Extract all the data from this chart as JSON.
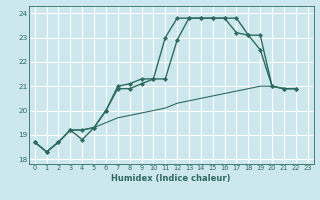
{
  "xlabel": "Humidex (Indice chaleur)",
  "background_color": "#cce8ee",
  "grid_color": "#ffffff",
  "line_color": "#2e6b5e",
  "xlim": [
    -0.5,
    23.5
  ],
  "ylim": [
    17.8,
    24.3
  ],
  "xticks": [
    0,
    1,
    2,
    3,
    4,
    5,
    6,
    7,
    8,
    9,
    10,
    11,
    12,
    13,
    14,
    15,
    16,
    17,
    18,
    19,
    20,
    21,
    22,
    23
  ],
  "yticks": [
    18,
    19,
    20,
    21,
    22,
    23,
    24
  ],
  "series": [
    {
      "x": [
        0,
        1,
        2,
        3,
        4,
        5,
        6,
        7,
        8,
        9,
        10,
        11,
        12,
        13,
        14,
        15,
        16,
        17,
        18,
        19,
        20,
        21,
        22
      ],
      "y": [
        18.7,
        18.3,
        18.7,
        19.2,
        18.8,
        19.3,
        20.0,
        20.9,
        20.9,
        21.1,
        21.3,
        21.3,
        22.9,
        23.8,
        23.8,
        23.8,
        23.8,
        23.8,
        23.1,
        23.1,
        21.0,
        20.9,
        20.9
      ],
      "linestyle": "-",
      "linewidth": 1.0,
      "marker": true
    },
    {
      "x": [
        0,
        1,
        2,
        3,
        4,
        5,
        6,
        7,
        8,
        9,
        10,
        11,
        12,
        13,
        14,
        15,
        16,
        17,
        18,
        19,
        20,
        21,
        22
      ],
      "y": [
        18.7,
        18.3,
        18.7,
        19.2,
        19.2,
        19.3,
        20.0,
        21.0,
        21.1,
        21.3,
        21.3,
        23.0,
        23.8,
        23.8,
        23.8,
        23.8,
        23.8,
        23.2,
        23.1,
        22.5,
        21.0,
        20.9,
        20.9
      ],
      "linestyle": "-",
      "linewidth": 1.0,
      "marker": true
    },
    {
      "x": [
        0,
        1,
        2,
        3,
        4,
        5,
        6,
        7,
        8,
        9,
        10,
        11,
        12,
        13,
        14,
        15,
        16,
        17,
        18,
        19,
        20,
        21,
        22
      ],
      "y": [
        18.7,
        18.3,
        18.7,
        19.2,
        19.2,
        19.3,
        19.5,
        19.7,
        19.8,
        19.9,
        20.0,
        20.1,
        20.3,
        20.4,
        20.5,
        20.6,
        20.7,
        20.8,
        20.9,
        21.0,
        21.0,
        20.9,
        20.9
      ],
      "linestyle": "-",
      "linewidth": 0.8,
      "marker": false
    }
  ]
}
